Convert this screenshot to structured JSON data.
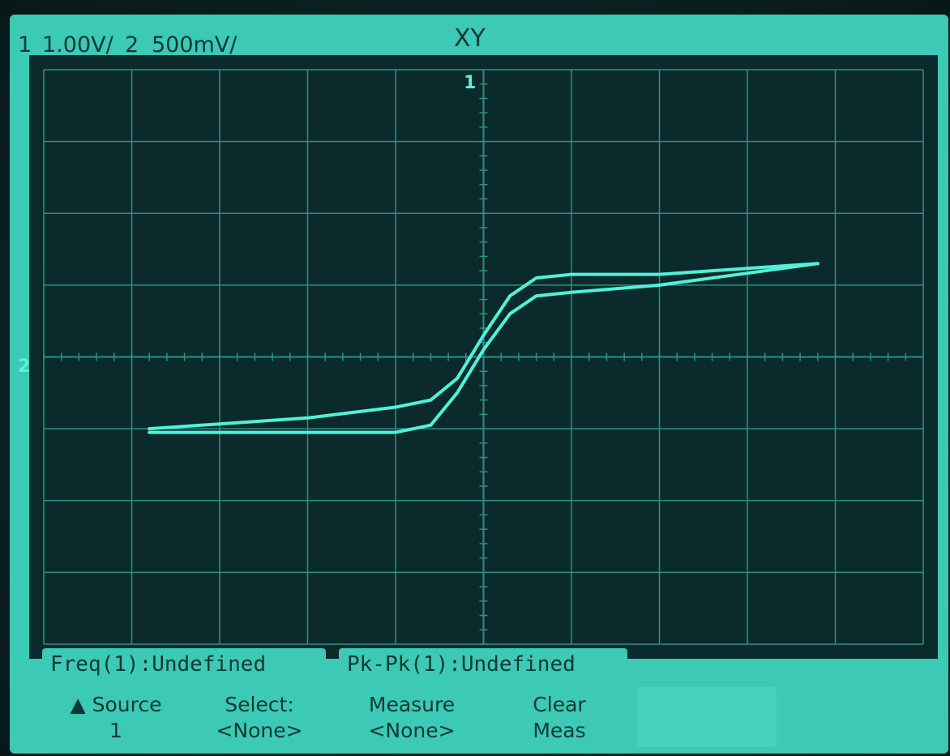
{
  "header": {
    "ch1_num": "1",
    "ch1_scale": "1.00V/",
    "ch2_num": "2",
    "ch2_scale": "500mV/",
    "mode": "XY"
  },
  "markers": {
    "top_marker": "1",
    "left_marker": "2"
  },
  "measurements": [
    {
      "label": "Freq(1):Undefined"
    },
    {
      "label": "Pk-Pk(1):Undefined"
    }
  ],
  "softkeys": [
    {
      "line1": "▲ Source",
      "line2": "1"
    },
    {
      "line1": "Select:",
      "line2": "<None>"
    },
    {
      "line1": "Measure",
      "line2": "<None>"
    },
    {
      "line1": "Clear",
      "line2": "Meas"
    },
    {
      "line1": "",
      "line2": ""
    }
  ],
  "colors": {
    "screen_bg": "#0a2a2b",
    "grid": "#2f8f86",
    "trace": "#4ef2db",
    "ui": "#3cc9b6"
  },
  "chart_data": {
    "type": "line",
    "title": "XY",
    "xlabel": "",
    "ylabel": "",
    "xlim": [
      -5,
      5
    ],
    "ylim": [
      -4,
      4
    ],
    "grid": true,
    "series": [
      {
        "x": [
          -3.8,
          -2.0,
          -1.0,
          -0.6,
          -0.3,
          0.0,
          0.3,
          0.6,
          1.0,
          2.0,
          3.8
        ],
        "y": [
          -1.05,
          -1.05,
          -1.05,
          -0.95,
          -0.5,
          0.1,
          0.6,
          0.85,
          0.9,
          1.0,
          1.3
        ]
      },
      {
        "x": [
          3.8,
          2.0,
          1.0,
          0.6,
          0.3,
          0.0,
          -0.3,
          -0.6,
          -1.0,
          -2.0,
          -3.8
        ],
        "y": [
          1.3,
          1.15,
          1.15,
          1.1,
          0.85,
          0.3,
          -0.3,
          -0.6,
          -0.7,
          -0.85,
          -1.0
        ]
      }
    ]
  }
}
